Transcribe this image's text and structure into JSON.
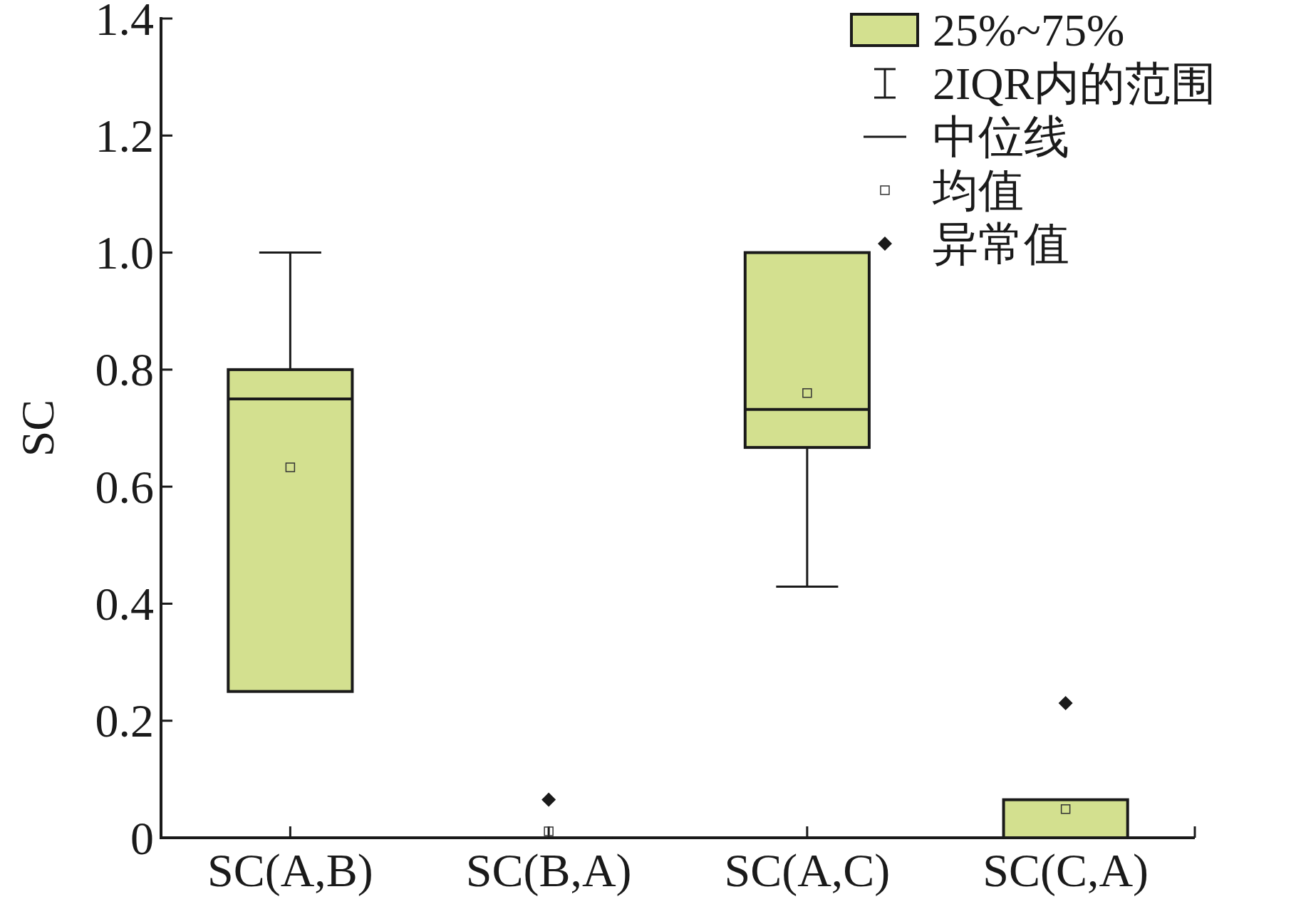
{
  "chart_data": {
    "type": "box",
    "ylabel": "SC",
    "categories": [
      "SC(A,B)",
      "SC(B,A)",
      "SC(A,C)",
      "SC(C,A)"
    ],
    "series": [
      {
        "name": "25%~75%",
        "color": "#d3e08f",
        "boxes": [
          {
            "low": 0.25,
            "q1": 0.25,
            "median": 0.75,
            "q3": 0.8,
            "high": 1.0,
            "mean": 0.633
          },
          {
            "low": 0,
            "q1": 0,
            "median": 0,
            "q3": 0,
            "high": 0,
            "mean": 0.011,
            "outliers": [
              0.065
            ]
          },
          {
            "low": 0.429,
            "q1": 0.667,
            "median": 0.732,
            "q3": 1.0,
            "high": 1.0,
            "mean": 0.76
          },
          {
            "low": 0,
            "q1": 0,
            "median": 0,
            "q3": 0.065,
            "high": 0.065,
            "mean": 0.049,
            "outliers": [
              0.23
            ]
          }
        ]
      }
    ],
    "ylim": [
      0,
      1.4
    ],
    "yticks": [
      {
        "value": 0,
        "label": "0"
      },
      0.2,
      0.4,
      0.6,
      0.8,
      {
        "value": 1.0,
        "label": "1.0"
      },
      1.2,
      1.4
    ],
    "annotations": [
      "2IQR内的范围",
      "中位线",
      "均值",
      "异常值"
    ],
    "legend": "top right",
    "grid": false
  }
}
